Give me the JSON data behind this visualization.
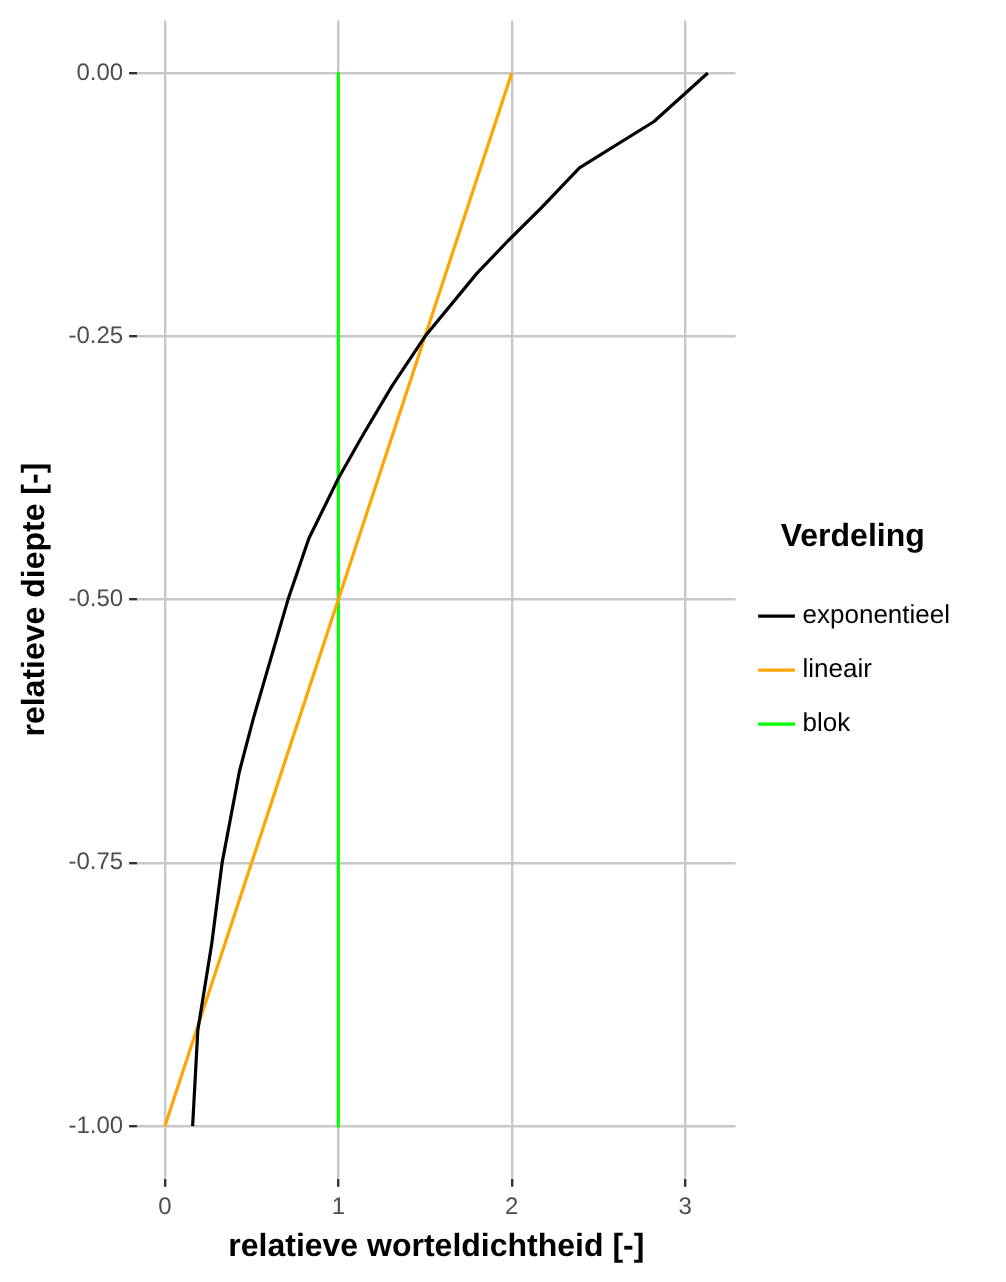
{
  "chart_data": {
    "type": "line",
    "xlabel": "relatieve worteldichtheid [-]",
    "ylabel": "relatieve diepte [-]",
    "legend_title": "Verdeling",
    "xlim": [
      -0.16,
      3.29
    ],
    "xticks": [
      0,
      1,
      2,
      3
    ],
    "ylim": [
      -1.05,
      0.05
    ],
    "yticks": [
      {
        "value": 0,
        "label": "0.00"
      },
      {
        "value": -0.25,
        "label": "-0.25"
      },
      {
        "value": -0.5,
        "label": "-0.50"
      },
      {
        "value": -0.75,
        "label": "-0.75"
      },
      {
        "value": -1,
        "label": "-1.00"
      }
    ],
    "grid": true,
    "legend": "right",
    "marker": "none",
    "line_style": "solid",
    "series": [
      {
        "name": "exponentieel",
        "color": "#000000",
        "x": [
          3.13,
          2.82,
          2.39,
          2.17,
          1.98,
          1.8,
          1.5,
          1.31,
          1.13,
          1.0,
          0.83,
          0.71,
          0.51,
          0.43,
          0.33,
          0.27,
          0.19,
          0.16
        ],
        "values": [
          0,
          -0.046,
          -0.09,
          -0.128,
          -0.159,
          -0.19,
          -0.25,
          -0.297,
          -0.347,
          -0.385,
          -0.442,
          -0.5,
          -0.613,
          -0.663,
          -0.75,
          -0.827,
          -0.909,
          -1
        ]
      },
      {
        "name": "lineair",
        "color": "#ffa500",
        "x": [
          2,
          0
        ],
        "values": [
          0,
          -1
        ]
      },
      {
        "name": "blok",
        "color": "#00ff00",
        "x": [
          1,
          1
        ],
        "values": [
          0,
          -1
        ]
      }
    ]
  }
}
